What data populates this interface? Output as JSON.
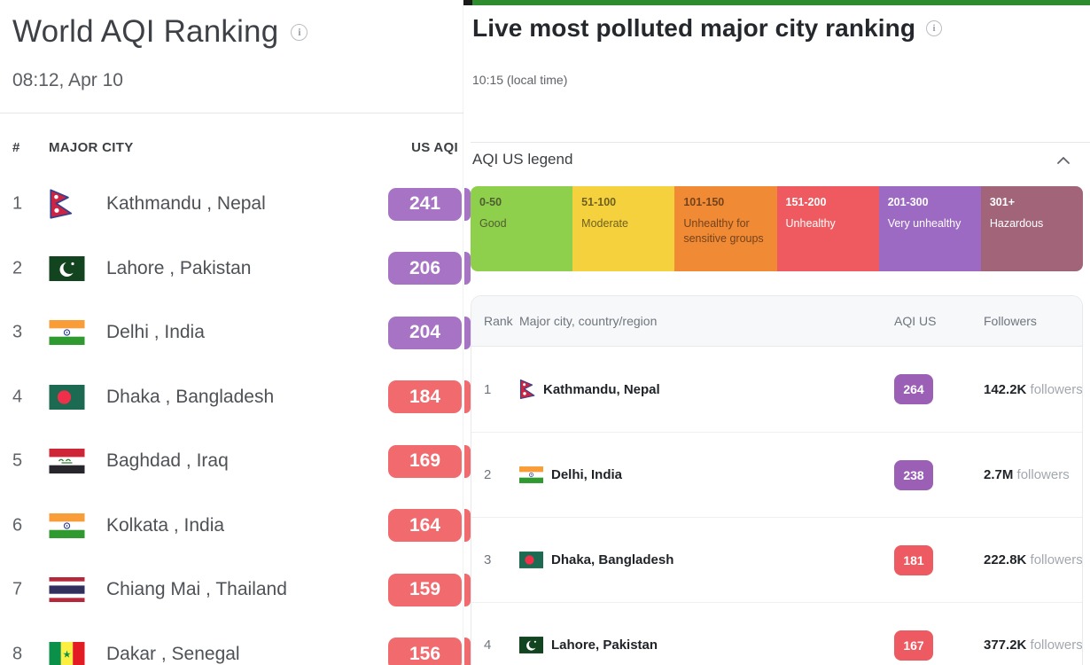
{
  "left_panel": {
    "title": "World AQI Ranking",
    "timestamp": "08:12, Apr 10",
    "columns": {
      "rank": "#",
      "city": "MAJOR CITY",
      "aqi": "US AQI"
    },
    "badge_colors": {
      "very_unhealthy": "#a673c5",
      "unhealthy": "#f16b6e"
    },
    "rows": [
      {
        "rank": "1",
        "city": "Kathmandu , Nepal",
        "flag": "nepal-flag-icon",
        "aqi": "241",
        "color": "#a673c5"
      },
      {
        "rank": "2",
        "city": "Lahore , Pakistan",
        "flag": "pakistan-flag-icon",
        "aqi": "206",
        "color": "#a673c5"
      },
      {
        "rank": "3",
        "city": "Delhi , India",
        "flag": "india-flag-icon",
        "aqi": "204",
        "color": "#a673c5"
      },
      {
        "rank": "4",
        "city": "Dhaka , Bangladesh",
        "flag": "bangladesh-flag-icon",
        "aqi": "184",
        "color": "#f16b6e"
      },
      {
        "rank": "5",
        "city": "Baghdad , Iraq",
        "flag": "iraq-flag-icon",
        "aqi": "169",
        "color": "#f16b6e"
      },
      {
        "rank": "6",
        "city": "Kolkata , India",
        "flag": "india-flag-icon",
        "aqi": "164",
        "color": "#f16b6e"
      },
      {
        "rank": "7",
        "city": "Chiang Mai , Thailand",
        "flag": "thailand-flag-icon",
        "aqi": "159",
        "color": "#f16b6e"
      },
      {
        "rank": "8",
        "city": "Dakar , Senegal",
        "flag": "senegal-flag-icon",
        "aqi": "156",
        "color": "#f16b6e"
      }
    ]
  },
  "right_panel": {
    "top_bar_color": "#2e8b2e",
    "title": "Live most polluted major city ranking",
    "timestamp": "10:15 (local time)",
    "legend": {
      "header": "AQI US legend",
      "bands": [
        {
          "range": "0-50",
          "label": "Good",
          "color": "#8ecf4b",
          "text_color": "#4f5d33"
        },
        {
          "range": "51-100",
          "label": "Moderate",
          "color": "#f5d23d",
          "text_color": "#6f5f1f"
        },
        {
          "range": "101-150",
          "label": "Unhealthy for sensitive groups",
          "color": "#f08a35",
          "text_color": "#74431c"
        },
        {
          "range": "151-200",
          "label": "Unhealthy",
          "color": "#ee5a5f",
          "text_color": "#ffffff"
        },
        {
          "range": "201-300",
          "label": "Very unhealthy",
          "color": "#9c6ac3",
          "text_color": "#ffffff"
        },
        {
          "range": "301+",
          "label": "Hazardous",
          "color": "#a26479",
          "text_color": "#ffffff"
        }
      ]
    },
    "table": {
      "columns": [
        "Rank",
        "Major city, country/region",
        "AQI US",
        "Followers"
      ],
      "rows": [
        {
          "rank": "1",
          "city": "Kathmandu, Nepal",
          "flag": "nepal-flag-icon",
          "aqi": "264",
          "aqi_color": "#9b60b6",
          "followers_value": "142.2K",
          "followers_label": "followers"
        },
        {
          "rank": "2",
          "city": "Delhi, India",
          "flag": "india-flag-icon",
          "aqi": "238",
          "aqi_color": "#9b60b6",
          "followers_value": "2.7M",
          "followers_label": "followers"
        },
        {
          "rank": "3",
          "city": "Dhaka, Bangladesh",
          "flag": "bangladesh-flag-icon",
          "aqi": "181",
          "aqi_color": "#ee5a61",
          "followers_value": "222.8K",
          "followers_label": "followers"
        },
        {
          "rank": "4",
          "city": "Lahore, Pakistan",
          "flag": "pakistan-flag-icon",
          "aqi": "167",
          "aqi_color": "#ee5a61",
          "followers_value": "377.2K",
          "followers_label": "followers"
        }
      ]
    }
  }
}
